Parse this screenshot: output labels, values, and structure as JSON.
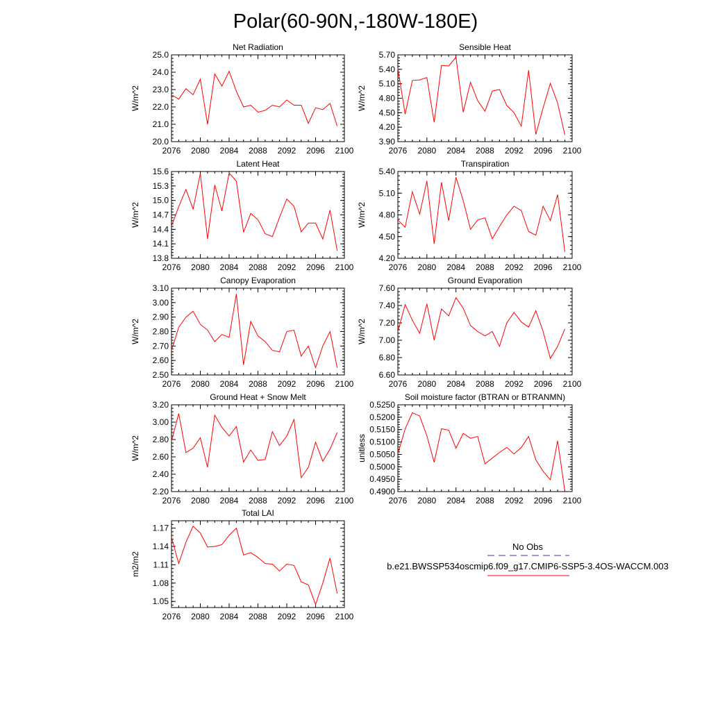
{
  "page_title": "Polar(60-90N,-180W-180E)",
  "colors": {
    "model_line": "#ff0000",
    "obs_line": "#3333cc",
    "axis": "#000000"
  },
  "legend": {
    "obs_label": "No Obs",
    "model_label": "b.e21.BWSSP534oscmip6.f09_g17.CMIP6-SSP5-3.4OS-WACCM.003"
  },
  "chart_data": [
    {
      "type": "line",
      "title": "Net Radiation",
      "ylabel": "W/m^2",
      "xlim": [
        2076,
        2100
      ],
      "xticks": [
        "2076",
        "2080",
        "2084",
        "2088",
        "2092",
        "2096",
        "2100"
      ],
      "ylim": [
        20.0,
        25.0
      ],
      "yticks": [
        "20.0",
        "21.0",
        "22.0",
        "23.0",
        "24.0",
        "25.0"
      ],
      "x": [
        2076,
        2077,
        2078,
        2079,
        2080,
        2081,
        2082,
        2083,
        2084,
        2085,
        2086,
        2087,
        2088,
        2089,
        2090,
        2091,
        2092,
        2093,
        2094,
        2095,
        2096,
        2097,
        2098,
        2099
      ],
      "values": [
        22.7,
        22.45,
        23.05,
        22.7,
        23.6,
        21.0,
        23.9,
        23.2,
        24.05,
        22.9,
        22.0,
        22.1,
        21.7,
        21.8,
        22.1,
        22.0,
        22.4,
        22.1,
        22.1,
        21.05,
        21.95,
        21.85,
        22.2,
        20.9
      ]
    },
    {
      "type": "line",
      "title": "Sensible Heat",
      "ylabel": "W/m^2",
      "xlim": [
        2076,
        2100
      ],
      "xticks": [
        "2076",
        "2080",
        "2084",
        "2088",
        "2092",
        "2096",
        "2100"
      ],
      "ylim": [
        3.9,
        5.7
      ],
      "yticks": [
        "3.90",
        "4.20",
        "4.50",
        "4.80",
        "5.10",
        "5.40",
        "5.70"
      ],
      "x": [
        2076,
        2077,
        2078,
        2079,
        2080,
        2081,
        2082,
        2083,
        2084,
        2085,
        2086,
        2087,
        2088,
        2089,
        2090,
        2091,
        2092,
        2093,
        2094,
        2095,
        2096,
        2097,
        2098,
        2099
      ],
      "values": [
        5.42,
        4.47,
        5.17,
        5.18,
        5.23,
        4.3,
        5.48,
        5.47,
        5.65,
        4.51,
        5.13,
        4.75,
        4.53,
        4.95,
        4.98,
        4.65,
        4.5,
        4.22,
        5.38,
        4.05,
        4.6,
        5.11,
        4.7,
        4.04
      ]
    },
    {
      "type": "line",
      "title": "Latent Heat",
      "ylabel": "W/m^2",
      "xlim": [
        2076,
        2100
      ],
      "xticks": [
        "2076",
        "2080",
        "2084",
        "2088",
        "2092",
        "2096",
        "2100"
      ],
      "ylim": [
        13.8,
        15.6
      ],
      "yticks": [
        "13.8",
        "14.1",
        "14.4",
        "14.7",
        "15.0",
        "15.3",
        "15.6"
      ],
      "x": [
        2076,
        2077,
        2078,
        2079,
        2080,
        2081,
        2082,
        2083,
        2084,
        2085,
        2086,
        2087,
        2088,
        2089,
        2090,
        2091,
        2092,
        2093,
        2094,
        2095,
        2096,
        2097,
        2098,
        2099
      ],
      "values": [
        14.47,
        14.87,
        15.23,
        14.82,
        15.56,
        14.2,
        15.32,
        14.78,
        15.57,
        15.4,
        14.34,
        14.73,
        14.6,
        14.31,
        14.25,
        14.65,
        15.03,
        14.88,
        14.35,
        14.53,
        14.53,
        14.2,
        14.8,
        13.96
      ]
    },
    {
      "type": "line",
      "title": "Transpiration",
      "ylabel": "W/m^2",
      "xlim": [
        2076,
        2100
      ],
      "xticks": [
        "2076",
        "2080",
        "2084",
        "2088",
        "2092",
        "2096",
        "2100"
      ],
      "ylim": [
        4.2,
        5.4
      ],
      "yticks": [
        "4.20",
        "4.50",
        "4.80",
        "5.10",
        "5.40"
      ],
      "x": [
        2076,
        2077,
        2078,
        2079,
        2080,
        2081,
        2082,
        2083,
        2084,
        2085,
        2086,
        2087,
        2088,
        2089,
        2090,
        2091,
        2092,
        2093,
        2094,
        2095,
        2096,
        2097,
        2098,
        2099
      ],
      "values": [
        4.73,
        4.63,
        5.12,
        4.81,
        5.27,
        4.4,
        5.25,
        4.72,
        5.32,
        5.0,
        4.6,
        4.73,
        4.76,
        4.47,
        4.64,
        4.8,
        4.92,
        4.86,
        4.57,
        4.52,
        4.92,
        4.72,
        5.08,
        4.29
      ]
    },
    {
      "type": "line",
      "title": "Canopy Evaporation",
      "ylabel": "W/m^2",
      "xlim": [
        2076,
        2100
      ],
      "xticks": [
        "2076",
        "2080",
        "2084",
        "2088",
        "2092",
        "2096",
        "2100"
      ],
      "ylim": [
        2.5,
        3.1
      ],
      "yticks": [
        "2.50",
        "2.60",
        "2.70",
        "2.80",
        "2.90",
        "3.00",
        "3.10"
      ],
      "x": [
        2076,
        2077,
        2078,
        2079,
        2080,
        2081,
        2082,
        2083,
        2084,
        2085,
        2086,
        2087,
        2088,
        2089,
        2090,
        2091,
        2092,
        2093,
        2094,
        2095,
        2096,
        2097,
        2098,
        2099
      ],
      "values": [
        2.67,
        2.83,
        2.9,
        2.94,
        2.85,
        2.81,
        2.73,
        2.78,
        2.76,
        3.06,
        2.57,
        2.87,
        2.77,
        2.73,
        2.67,
        2.66,
        2.8,
        2.81,
        2.63,
        2.7,
        2.55,
        2.7,
        2.8,
        2.55
      ]
    },
    {
      "type": "line",
      "title": "Ground Evaporation",
      "ylabel": "W/m^2",
      "xlim": [
        2076,
        2100
      ],
      "xticks": [
        "2076",
        "2080",
        "2084",
        "2088",
        "2092",
        "2096",
        "2100"
      ],
      "ylim": [
        6.6,
        7.6
      ],
      "yticks": [
        "6.60",
        "6.80",
        "7.00",
        "7.20",
        "7.40",
        "7.60"
      ],
      "x": [
        2076,
        2077,
        2078,
        2079,
        2080,
        2081,
        2082,
        2083,
        2084,
        2085,
        2086,
        2087,
        2088,
        2089,
        2090,
        2091,
        2092,
        2093,
        2094,
        2095,
        2096,
        2097,
        2098,
        2099
      ],
      "values": [
        7.1,
        7.41,
        7.23,
        7.08,
        7.42,
        7.0,
        7.36,
        7.28,
        7.49,
        7.37,
        7.17,
        7.1,
        7.05,
        7.1,
        6.93,
        7.2,
        7.32,
        7.21,
        7.15,
        7.34,
        7.1,
        6.79,
        6.93,
        7.13
      ]
    },
    {
      "type": "line",
      "title": "Ground Heat + Snow Melt",
      "ylabel": "W/m^2",
      "xlim": [
        2076,
        2100
      ],
      "xticks": [
        "2076",
        "2080",
        "2084",
        "2088",
        "2092",
        "2096",
        "2100"
      ],
      "ylim": [
        2.2,
        3.2
      ],
      "yticks": [
        "2.20",
        "2.40",
        "2.60",
        "2.80",
        "3.00",
        "3.20"
      ],
      "x": [
        2076,
        2077,
        2078,
        2079,
        2080,
        2081,
        2082,
        2083,
        2084,
        2085,
        2086,
        2087,
        2088,
        2089,
        2090,
        2091,
        2092,
        2093,
        2094,
        2095,
        2096,
        2097,
        2098,
        2099
      ],
      "values": [
        2.78,
        3.1,
        2.65,
        2.7,
        2.82,
        2.48,
        3.08,
        2.94,
        2.84,
        2.95,
        2.54,
        2.68,
        2.56,
        2.57,
        2.89,
        2.73,
        2.84,
        3.03,
        2.36,
        2.48,
        2.77,
        2.55,
        2.69,
        2.88
      ]
    },
    {
      "type": "line",
      "title": "Soil moisture factor (BTRAN or BTRANMN)",
      "ylabel": "unitless",
      "xlim": [
        2076,
        2100
      ],
      "xticks": [
        "2076",
        "2080",
        "2084",
        "2088",
        "2092",
        "2096",
        "2100"
      ],
      "ylim": [
        0.49,
        0.525
      ],
      "yticks": [
        "0.4900",
        "0.4950",
        "0.5000",
        "0.5050",
        "0.5100",
        "0.5150",
        "0.5200",
        "0.5250"
      ],
      "x": [
        2076,
        2077,
        2078,
        2079,
        2080,
        2081,
        2082,
        2083,
        2084,
        2085,
        2086,
        2087,
        2088,
        2089,
        2090,
        2091,
        2092,
        2093,
        2094,
        2095,
        2096,
        2097,
        2098,
        2099
      ],
      "values": [
        0.5052,
        0.5153,
        0.5218,
        0.5205,
        0.5125,
        0.5018,
        0.5153,
        0.5148,
        0.5075,
        0.5135,
        0.5115,
        0.5122,
        0.5012,
        0.5035,
        0.5058,
        0.5078,
        0.5052,
        0.5078,
        0.5122,
        0.5028,
        0.4982,
        0.4948,
        0.5105,
        0.4902
      ]
    },
    {
      "type": "line",
      "title": "Total LAI",
      "ylabel": "m2/m2",
      "xlim": [
        2076,
        2100
      ],
      "xticks": [
        "2076",
        "2080",
        "2084",
        "2088",
        "2092",
        "2096",
        "2100"
      ],
      "ylim": [
        1.04,
        1.182
      ],
      "yticks": [
        "1.05",
        "1.08",
        "1.11",
        "1.14",
        "1.17"
      ],
      "x": [
        2076,
        2077,
        2078,
        2079,
        2080,
        2081,
        2082,
        2083,
        2084,
        2085,
        2086,
        2087,
        2088,
        2089,
        2090,
        2091,
        2092,
        2093,
        2094,
        2095,
        2096,
        2097,
        2098,
        2099
      ],
      "values": [
        1.155,
        1.112,
        1.147,
        1.173,
        1.162,
        1.139,
        1.14,
        1.143,
        1.158,
        1.17,
        1.126,
        1.13,
        1.122,
        1.112,
        1.111,
        1.1,
        1.111,
        1.109,
        1.082,
        1.077,
        1.045,
        1.08,
        1.121,
        1.063
      ]
    }
  ]
}
